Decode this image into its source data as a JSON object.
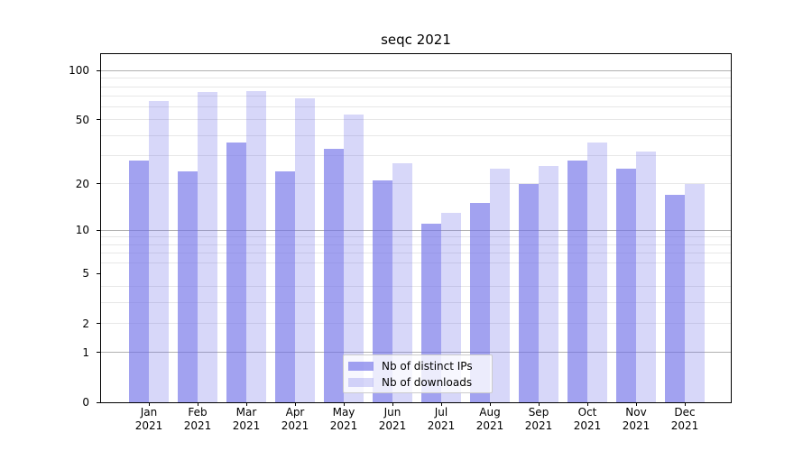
{
  "title": "seqc 2021",
  "chart_data": {
    "type": "bar",
    "categories": [
      "Jan",
      "Feb",
      "Mar",
      "Apr",
      "May",
      "Jun",
      "Jul",
      "Aug",
      "Sep",
      "Oct",
      "Nov",
      "Dec"
    ],
    "category_year": "2021",
    "series": [
      {
        "name": "Nb of distinct IPs",
        "color": "rgba(112,112,232,0.65)",
        "values": [
          28,
          24,
          36,
          24,
          33,
          21,
          11,
          15,
          20,
          28,
          25,
          17
        ]
      },
      {
        "name": "Nb of downloads",
        "color": "rgba(112,112,232,0.28)",
        "values": [
          65,
          74,
          75,
          68,
          54,
          27,
          13,
          25,
          26,
          36,
          32,
          20
        ]
      }
    ],
    "y_scale": "log1p",
    "ylim": [
      0,
      126.4
    ],
    "y_ticks": [
      0,
      1,
      2,
      5,
      10,
      20,
      50,
      100
    ],
    "y_major_gridlines": [
      1,
      10,
      100
    ],
    "y_minor_gridlines": [
      2,
      3,
      4,
      6,
      7,
      8,
      9,
      20,
      30,
      40,
      50,
      60,
      70,
      80,
      90
    ],
    "grid": true,
    "legend_position": "bottom-center",
    "colors": {
      "major_grid": "#b0b0b0",
      "minor_grid": "#e7e7e7",
      "axis": "#000000",
      "text": "#000000",
      "legend_border": "#cccccc",
      "legend_bg": "rgba(255,255,255,0.8)"
    }
  }
}
